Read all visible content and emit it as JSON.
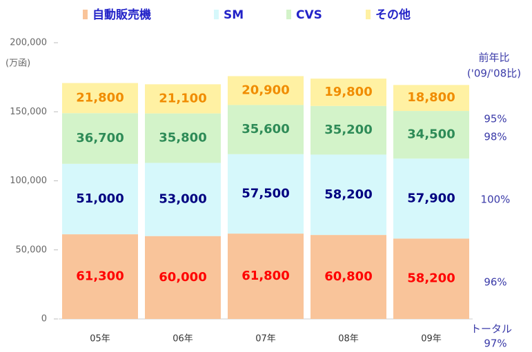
{
  "chart_data": {
    "type": "stacked_bar",
    "unit_label": "(万函)",
    "categories": [
      "05年",
      "06年",
      "07年",
      "08年",
      "09年"
    ],
    "series": [
      {
        "name": "自動販売機",
        "color": "#f9c49a",
        "label_color": "#ff0000",
        "yoy": "96%",
        "values": [
          61300,
          60000,
          61800,
          60800,
          58200
        ],
        "value_labels": [
          "61,300",
          "60,000",
          "61,800",
          "60,800",
          "58,200"
        ]
      },
      {
        "name": "SM",
        "color": "#d6f8fb",
        "label_color": "#000080",
        "yoy": "100%",
        "values": [
          51000,
          53000,
          57500,
          58200,
          57900
        ],
        "value_labels": [
          "51,000",
          "53,000",
          "57,500",
          "58,200",
          "57,900"
        ]
      },
      {
        "name": "CVS",
        "color": "#d3f3c9",
        "label_color": "#2e8b57",
        "yoy": "98%",
        "values": [
          36700,
          35800,
          35600,
          35200,
          34500
        ],
        "value_labels": [
          "36,700",
          "35,800",
          "35,600",
          "35,200",
          "34,500"
        ]
      },
      {
        "name": "その他",
        "color": "#fff1a3",
        "label_color": "#f08c00",
        "yoy": "95%",
        "values": [
          21800,
          21100,
          20900,
          19800,
          18800
        ],
        "value_labels": [
          "21,800",
          "21,100",
          "20,900",
          "19,800",
          "18,800"
        ]
      }
    ],
    "yoy_title": "前年比",
    "yoy_subtitle": "('09/'08比)",
    "total_label": "トータル",
    "total_yoy": "97%",
    "ylim": [
      0,
      200000
    ],
    "yticks": [
      0,
      {
        "value": 50000,
        "label": "50,000"
      },
      {
        "value": 100000,
        "label": "100,000"
      },
      {
        "value": 150000,
        "label": "150,000"
      },
      {
        "value": 200000,
        "label": "200,000"
      }
    ]
  }
}
